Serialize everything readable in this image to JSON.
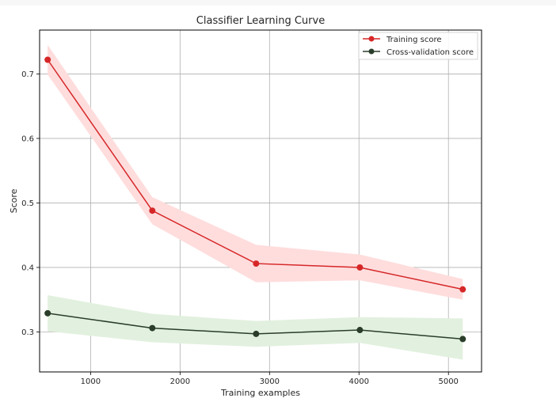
{
  "chart_data": {
    "type": "line",
    "title": "Classifier Learning Curve",
    "xlabel": "Training examples",
    "ylabel": "Score",
    "xlim": [
      430,
      5370
    ],
    "ylim": [
      0.238,
      0.768
    ],
    "xticks": [
      1000,
      2000,
      3000,
      4000,
      5000
    ],
    "yticks": [
      0.3,
      0.4,
      0.5,
      0.6,
      0.7
    ],
    "grid": true,
    "legend_position": "top-right",
    "x": [
      520,
      1690,
      2850,
      4010,
      5160
    ],
    "series": [
      {
        "name": "Training score",
        "color": "#d62728",
        "band_color": "#ffdddd",
        "values": [
          0.722,
          0.488,
          0.406,
          0.4,
          0.366
        ],
        "lower": [
          0.699,
          0.467,
          0.377,
          0.38,
          0.35
        ],
        "upper": [
          0.745,
          0.509,
          0.435,
          0.42,
          0.382
        ]
      },
      {
        "name": "Cross-validation score",
        "color": "#2a3d2a",
        "band_color": "#e2f1df",
        "values": [
          0.329,
          0.306,
          0.297,
          0.303,
          0.289
        ],
        "lower": [
          0.301,
          0.284,
          0.277,
          0.283,
          0.257
        ],
        "upper": [
          0.357,
          0.328,
          0.317,
          0.323,
          0.321
        ]
      }
    ]
  }
}
